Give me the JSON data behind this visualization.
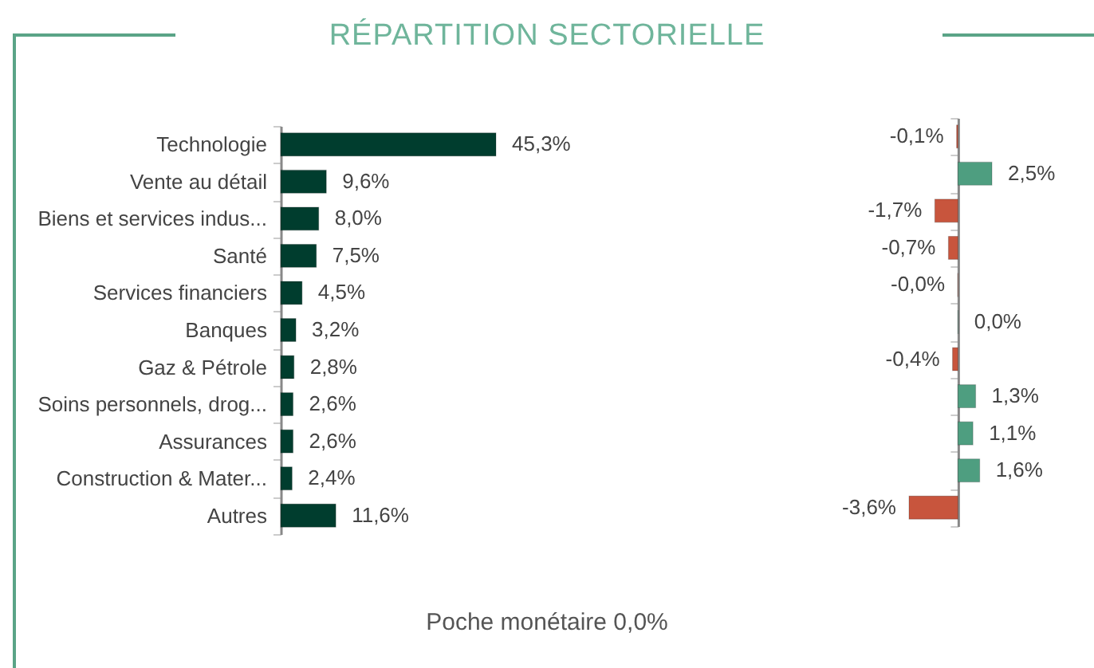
{
  "chart_data": [
    {
      "type": "bar",
      "orientation": "horizontal",
      "title": "RÉPARTITION SECTORIELLE",
      "categories": [
        "Technologie",
        "Vente au détail",
        "Biens et services indus...",
        "Santé",
        "Services financiers",
        "Banques",
        "Gaz & Pétrole",
        "Soins personnels, drog...",
        "Assurances",
        "Construction & Mater...",
        "Autres"
      ],
      "series": [
        {
          "color": "#003d2e",
          "values": [
            45.3,
            9.6,
            8.0,
            7.5,
            4.5,
            3.2,
            2.8,
            2.6,
            2.6,
            2.4,
            11.6
          ],
          "value_labels": [
            "45,3%",
            "9,6%",
            "8,0%",
            "7,5%",
            "4,5%",
            "3,2%",
            "2,8%",
            "2,6%",
            "2,6%",
            "2,4%",
            "11,6%"
          ]
        }
      ],
      "tick_labels": "y",
      "grid": false,
      "annotations": [
        "Poche monétaire 0,0%"
      ]
    },
    {
      "type": "bar",
      "orientation": "horizontal",
      "categories": [
        null,
        null,
        null,
        null,
        null,
        null,
        null,
        null,
        null,
        null,
        null
      ],
      "series": [
        {
          "values": [
            -0.1,
            2.5,
            -1.7,
            -0.7,
            -0.02,
            0.02,
            -0.4,
            1.3,
            1.1,
            1.6,
            -3.6
          ],
          "colors": [
            "#c8553d",
            "#4e9e80",
            "#c8553d",
            "#c8553d",
            "#c8553d",
            "#4e9e80",
            "#c8553d",
            "#4e9e80",
            "#4e9e80",
            "#4e9e80",
            "#c8553d"
          ],
          "value_labels": [
            "-0,1%",
            "2,5%",
            "-1,7%",
            "-0,7%",
            "-0,0%",
            "0,0%",
            "-0,4%",
            "1,3%",
            "1,1%",
            "1,6%",
            "-3,6%"
          ]
        }
      ],
      "tick_labels": false,
      "grid": false
    }
  ]
}
